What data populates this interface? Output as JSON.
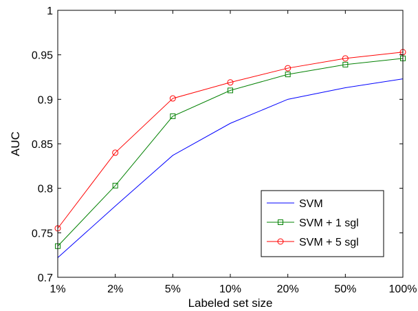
{
  "chart_data": {
    "type": "line",
    "title": "",
    "xlabel": "Labeled set size",
    "ylabel": "AUC",
    "categories": [
      "1%",
      "2%",
      "5%",
      "10%",
      "20%",
      "50%",
      "100%"
    ],
    "ylim": [
      0.7,
      1.0
    ],
    "yticks": [
      "0.7",
      "0.75",
      "0.8",
      "0.85",
      "0.9",
      "0.95",
      "1"
    ],
    "grid": false,
    "legend_position": "bottom-right",
    "series": [
      {
        "name": "SVM",
        "color": "#0000ff",
        "marker": "none",
        "values": [
          0.722,
          0.78,
          0.837,
          0.873,
          0.9,
          0.913,
          0.923
        ]
      },
      {
        "name": "SVM + 1 sgl",
        "color": "#008000",
        "marker": "square",
        "values": [
          0.735,
          0.803,
          0.881,
          0.91,
          0.928,
          0.939,
          0.946
        ]
      },
      {
        "name": "SVM + 5 sgl",
        "color": "#ff0000",
        "marker": "circle",
        "values": [
          0.755,
          0.84,
          0.901,
          0.919,
          0.935,
          0.946,
          0.953
        ]
      }
    ]
  }
}
